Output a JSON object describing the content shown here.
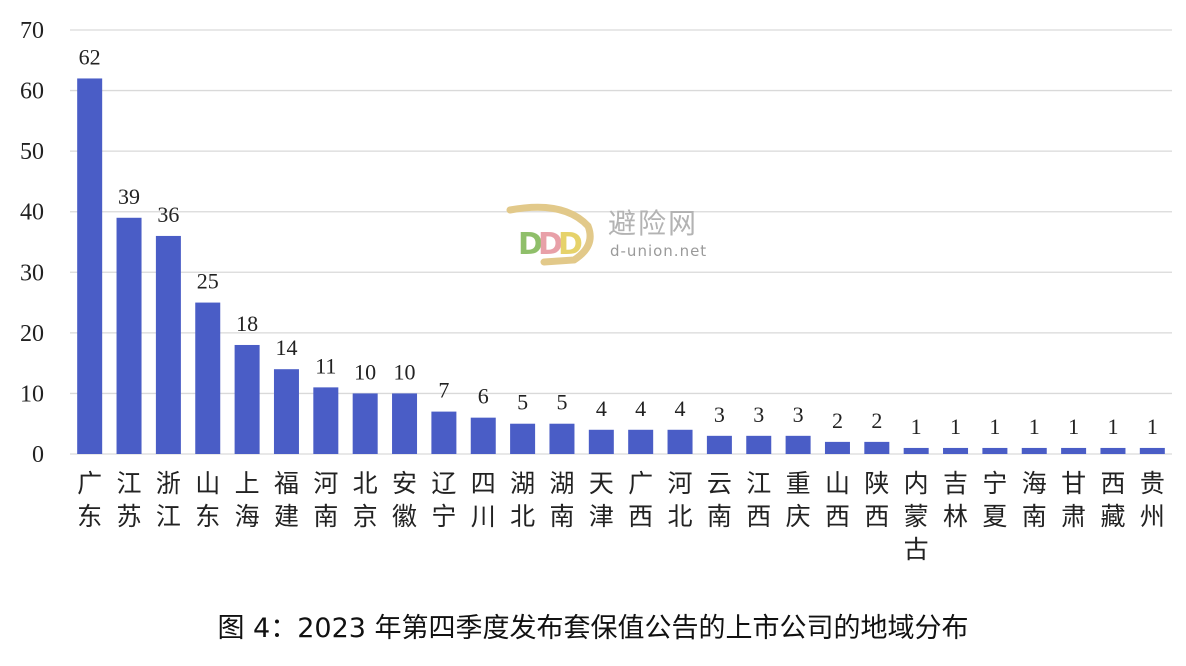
{
  "chart_data": {
    "type": "bar",
    "categories": [
      "广东",
      "江苏",
      "浙江",
      "山东",
      "上海",
      "福建",
      "河南",
      "北京",
      "安徽",
      "辽宁",
      "四川",
      "湖北",
      "湖南",
      "天津",
      "广西",
      "河北",
      "云南",
      "江西",
      "重庆",
      "山西",
      "陕西",
      "内蒙古",
      "吉林",
      "宁夏",
      "海南",
      "甘肃",
      "西藏",
      "贵州"
    ],
    "values": [
      62,
      39,
      36,
      25,
      18,
      14,
      11,
      10,
      10,
      7,
      6,
      5,
      5,
      4,
      4,
      4,
      3,
      3,
      3,
      2,
      2,
      1,
      1,
      1,
      1,
      1,
      1,
      1
    ],
    "title": "",
    "xlabel": "",
    "ylabel": "",
    "ylim": [
      0,
      70
    ],
    "yticks": [
      0,
      10,
      20,
      30,
      40,
      50,
      60,
      70
    ],
    "grid": true,
    "bar_color": "#4a5dc6"
  },
  "caption": "图 4：2023 年第四季度发布套保值公告的上市公司的地域分布",
  "watermark": {
    "name": "避险网",
    "url": "d-union.net"
  }
}
